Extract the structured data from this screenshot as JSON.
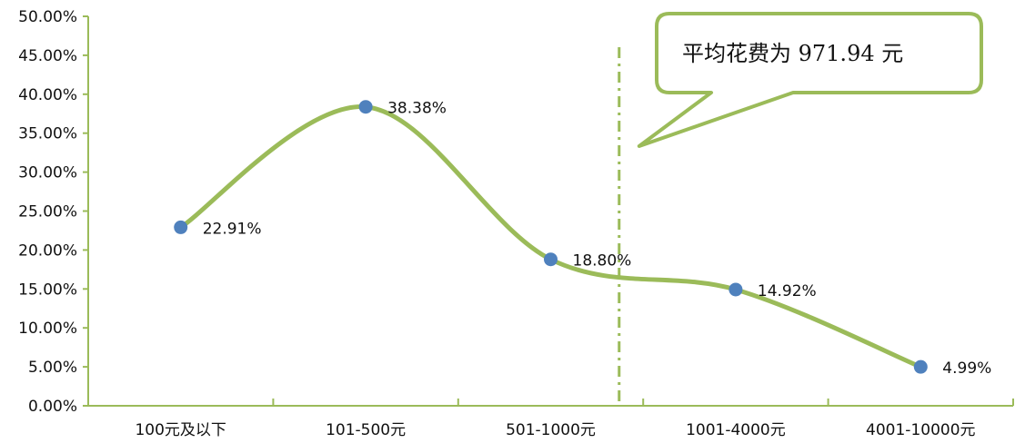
{
  "chart_data": {
    "type": "line",
    "categories": [
      "100元及以下",
      "101-500元",
      "501-1000元",
      "1001-4000元",
      "4001-10000元"
    ],
    "values": [
      22.91,
      38.38,
      18.8,
      14.92,
      4.99
    ],
    "data_labels": [
      "22.91%",
      "38.38%",
      "18.80%",
      "14.92%",
      "4.99%"
    ],
    "ylim": [
      0,
      50
    ],
    "yticks": [
      0,
      5,
      10,
      15,
      20,
      25,
      30,
      35,
      40,
      45,
      50
    ],
    "ytick_labels": [
      "0.00%",
      "5.00%",
      "10.00%",
      "15.00%",
      "20.00%",
      "25.00%",
      "30.00%",
      "35.00%",
      "40.00%",
      "45.00%",
      "50.00%"
    ],
    "grid": false,
    "smooth": true,
    "colors": {
      "line": "#9bbb59",
      "marker": "#4f81bd",
      "axis": "#9bbb59",
      "callout_border": "#9bbb59"
    },
    "annotation": {
      "text": "平均花费为 971.94 元",
      "x_value": 971.94,
      "reference_line": "dash-dot vertical line"
    }
  }
}
